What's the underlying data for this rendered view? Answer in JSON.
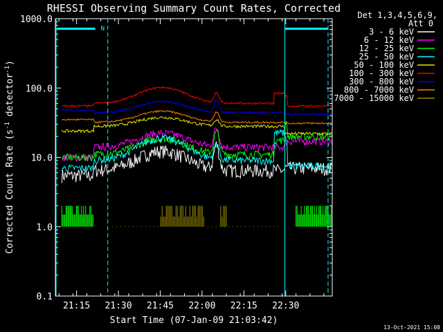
{
  "chart_data": {
    "type": "line",
    "title": "RHESSI Observing Summary Count Rates, Corrected",
    "xlabel": "Start Time (07-Jan-09 21:03:42)",
    "ylabel_main": "Corrected Count Rate (s",
    "ylabel_sup1": "-1",
    "ylabel_mid": " detector",
    "ylabel_sup2": "-1",
    "ylabel_end": ")",
    "yscale": "log",
    "ylim": [
      0.1,
      1000
    ],
    "xlim_min": [
      3.7,
      103
    ],
    "x_tick_minutes": [
      11.3,
      26.3,
      41.3,
      56.3,
      71.3,
      86.3
    ],
    "x_tick_labels": [
      "21:15",
      "21:30",
      "21:45",
      "22:00",
      "22:15",
      "22:30"
    ],
    "y_ticks": [
      0.1,
      1,
      10,
      100,
      1000
    ],
    "y_tick_labels": [
      "0.1",
      "1.0",
      "10.0",
      "100.0",
      "1000.0"
    ],
    "grid": false,
    "legend_header": [
      "Det 1,3,4,5,6,9,",
      "Att 0"
    ],
    "legend_position": "top-right",
    "series": [
      {
        "name": "3 - 6 keV",
        "color": "#ffffff"
      },
      {
        "name": "6 - 12 keV",
        "color": "#ff00ff"
      },
      {
        "name": "12 - 25 keV",
        "color": "#00ff00"
      },
      {
        "name": "25 - 50 keV",
        "color": "#00ffff"
      },
      {
        "name": "50 - 100 keV",
        "color": "#e6e600"
      },
      {
        "name": "100 - 300 keV",
        "color": "#ff0000"
      },
      {
        "name": "300 - 800 keV",
        "color": "#0000ff"
      },
      {
        "name": "800 - 7000 keV",
        "color": "#ff8000"
      },
      {
        "name": "7000 - 15000 keV",
        "color": "#9a8a00"
      }
    ],
    "night_marker": "N",
    "footer_date": "13-Oct-2021 15:08"
  }
}
